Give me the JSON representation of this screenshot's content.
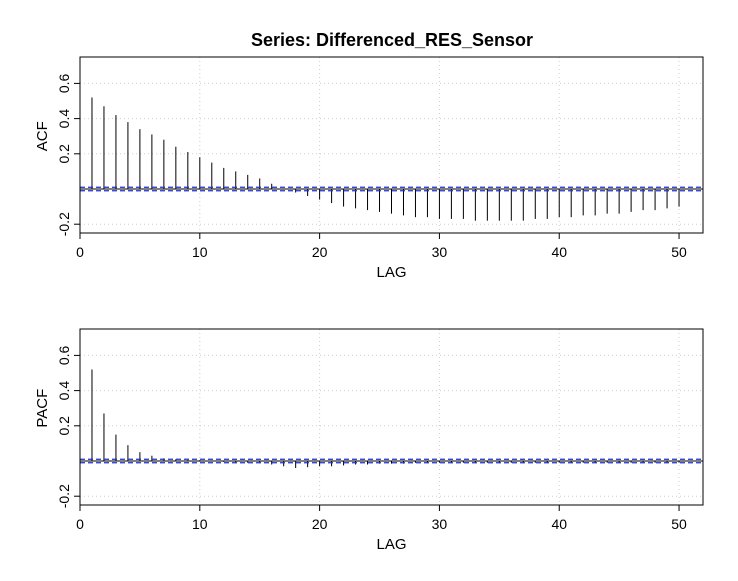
{
  "title": "Series:  Differenced_RES_Sensor",
  "colors": {
    "spike": "#000000",
    "confidence_band": "#1f2fd0",
    "grid": "#cfcfcf"
  },
  "chart_data": [
    {
      "type": "bar",
      "name": "acf",
      "xlabel": "LAG",
      "ylabel": "ACF",
      "xlim": [
        0,
        52
      ],
      "ylim": [
        -0.25,
        0.75
      ],
      "x_ticks": [
        0,
        10,
        20,
        30,
        40,
        50
      ],
      "y_ticks": [
        -0.2,
        0.2,
        0.4,
        0.6
      ],
      "x_tick_labels": [
        "0",
        "10",
        "20",
        "30",
        "40",
        "50"
      ],
      "y_tick_labels": [
        "-0.2",
        "0.2",
        "0.4",
        "0.6"
      ],
      "grid": true,
      "confidence_band": 0.01,
      "lags": [
        1,
        2,
        3,
        4,
        5,
        6,
        7,
        8,
        9,
        10,
        11,
        12,
        13,
        14,
        15,
        16,
        17,
        18,
        19,
        20,
        21,
        22,
        23,
        24,
        25,
        26,
        27,
        28,
        29,
        30,
        31,
        32,
        33,
        34,
        35,
        36,
        37,
        38,
        39,
        40,
        41,
        42,
        43,
        44,
        45,
        46,
        47,
        48,
        49,
        50
      ],
      "values": [
        0.52,
        0.47,
        0.42,
        0.38,
        0.34,
        0.31,
        0.28,
        0.24,
        0.21,
        0.18,
        0.15,
        0.12,
        0.1,
        0.08,
        0.06,
        0.03,
        0.0,
        -0.02,
        -0.04,
        -0.06,
        -0.08,
        -0.1,
        -0.11,
        -0.12,
        -0.13,
        -0.14,
        -0.15,
        -0.16,
        -0.16,
        -0.17,
        -0.17,
        -0.17,
        -0.18,
        -0.18,
        -0.18,
        -0.18,
        -0.18,
        -0.17,
        -0.17,
        -0.16,
        -0.16,
        -0.15,
        -0.15,
        -0.14,
        -0.14,
        -0.13,
        -0.12,
        -0.12,
        -0.11,
        -0.1
      ]
    },
    {
      "type": "bar",
      "name": "pacf",
      "xlabel": "LAG",
      "ylabel": "PACF",
      "xlim": [
        0,
        52
      ],
      "ylim": [
        -0.25,
        0.75
      ],
      "x_ticks": [
        0,
        10,
        20,
        30,
        40,
        50
      ],
      "y_ticks": [
        -0.2,
        0.2,
        0.4,
        0.6
      ],
      "x_tick_labels": [
        "0",
        "10",
        "20",
        "30",
        "40",
        "50"
      ],
      "y_tick_labels": [
        "-0.2",
        "0.2",
        "0.4",
        "0.6"
      ],
      "grid": true,
      "confidence_band": 0.01,
      "lags": [
        1,
        2,
        3,
        4,
        5,
        6,
        7,
        8,
        9,
        10,
        11,
        12,
        13,
        14,
        15,
        16,
        17,
        18,
        19,
        20,
        21,
        22,
        23,
        24,
        25,
        26,
        27,
        28,
        29,
        30,
        31,
        32,
        33,
        34,
        35,
        36,
        37,
        38,
        39,
        40,
        41,
        42,
        43,
        44,
        45,
        46,
        47,
        48,
        49,
        50
      ],
      "values": [
        0.52,
        0.27,
        0.15,
        0.09,
        0.05,
        0.03,
        0.015,
        0.01,
        0.005,
        0.005,
        0.0,
        -0.005,
        -0.01,
        -0.01,
        -0.01,
        -0.02,
        -0.03,
        -0.04,
        -0.035,
        -0.03,
        -0.03,
        -0.025,
        -0.02,
        -0.02,
        -0.015,
        -0.015,
        -0.015,
        -0.01,
        -0.01,
        -0.01,
        -0.01,
        -0.01,
        -0.01,
        -0.01,
        -0.01,
        -0.01,
        -0.01,
        -0.01,
        -0.01,
        -0.01,
        -0.01,
        -0.01,
        -0.01,
        -0.01,
        -0.01,
        -0.01,
        -0.01,
        -0.01,
        -0.01,
        -0.01
      ]
    }
  ]
}
